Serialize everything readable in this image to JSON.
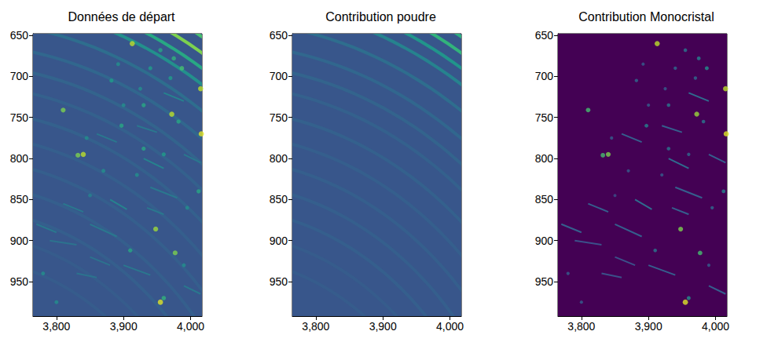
{
  "chart_data": [
    {
      "type": "image",
      "title": "Données de départ",
      "color": "viridis",
      "value_range": [
        0,
        1
      ],
      "xlim": [
        3765,
        4017
      ],
      "xticks": [
        3800,
        3900,
        4000
      ],
      "ylim": [
        648,
        992
      ],
      "yticks": [
        650,
        700,
        750,
        800,
        850,
        900,
        950
      ],
      "background": 0.27,
      "rings": {
        "center": [
          3650,
          1300
        ],
        "radii": [
          745,
          728,
          712,
          695,
          668,
          640,
          615,
          590,
          560,
          530,
          500,
          470,
          440,
          410,
          380
        ],
        "values": [
          0.7,
          0.8,
          0.6,
          0.5,
          0.36,
          0.33,
          0.32,
          0.31,
          0.31,
          0.3,
          0.3,
          0.3,
          0.3,
          0.29,
          0.29
        ]
      },
      "spots": {
        "x": [
          3913,
          3955,
          3975,
          3987,
          3970,
          3940,
          4015,
          3925,
          3882,
          3892,
          3930,
          3810,
          3897,
          3972,
          3982,
          3900,
          3840,
          3832,
          3845,
          3930,
          4016,
          3960,
          3920,
          3870,
          4012,
          3948,
          3910,
          3977,
          3955,
          3960,
          3995,
          3850,
          3780,
          3800,
          3990
        ],
        "y": [
          660,
          668,
          678,
          690,
          702,
          690,
          715,
          715,
          705,
          685,
          735,
          741,
          760,
          746,
          755,
          735,
          795,
          796,
          775,
          788,
          770,
          795,
          820,
          815,
          840,
          886,
          912,
          915,
          975,
          970,
          860,
          845,
          940,
          975,
          930
        ],
        "values": [
          0.9,
          0.6,
          0.65,
          0.7,
          0.55,
          0.55,
          0.9,
          0.5,
          0.55,
          0.5,
          0.6,
          0.8,
          0.6,
          0.9,
          0.6,
          0.5,
          0.9,
          0.8,
          0.5,
          0.6,
          0.95,
          0.55,
          0.5,
          0.5,
          0.6,
          0.85,
          0.6,
          0.8,
          0.95,
          0.65,
          0.5,
          0.45,
          0.5,
          0.5,
          0.5
        ]
      },
      "streaks": [
        [
          3880,
          850,
          3905,
          862,
          0.45
        ],
        [
          3935,
          860,
          3960,
          868,
          0.4
        ],
        [
          3770,
          880,
          3800,
          890,
          0.4
        ],
        [
          3790,
          900,
          3830,
          905,
          0.38
        ],
        [
          3850,
          880,
          3890,
          895,
          0.4
        ],
        [
          3930,
          800,
          3960,
          812,
          0.45
        ],
        [
          3940,
          835,
          3980,
          848,
          0.4
        ],
        [
          3860,
          770,
          3890,
          780,
          0.4
        ],
        [
          3990,
          795,
          4015,
          805,
          0.4
        ],
        [
          3830,
          940,
          3860,
          945,
          0.38
        ],
        [
          3900,
          930,
          3940,
          942,
          0.4
        ],
        [
          3960,
          720,
          3990,
          730,
          0.45
        ],
        [
          3920,
          760,
          3950,
          768,
          0.4
        ],
        [
          3810,
          855,
          3840,
          865,
          0.4
        ],
        [
          3990,
          955,
          4015,
          965,
          0.4
        ],
        [
          3850,
          920,
          3880,
          930,
          0.38
        ]
      ]
    },
    {
      "type": "image",
      "title": "Contribution poudre",
      "color": "viridis",
      "value_range": [
        0,
        1
      ],
      "xlim": [
        3765,
        4017
      ],
      "xticks": [
        3800,
        3900,
        4000
      ],
      "ylim": [
        648,
        992
      ],
      "yticks": [
        650,
        700,
        750,
        800,
        850,
        900,
        950
      ],
      "background": 0.27,
      "rings": {
        "center": [
          3650,
          1300
        ],
        "radii": [
          745,
          728,
          712,
          695,
          668,
          640,
          615,
          590,
          560,
          530,
          500,
          470,
          440,
          410,
          380
        ],
        "values": [
          0.62,
          0.65,
          0.52,
          0.45,
          0.36,
          0.33,
          0.32,
          0.31,
          0.31,
          0.3,
          0.3,
          0.3,
          0.3,
          0.29,
          0.29
        ]
      }
    },
    {
      "type": "image",
      "title": "Contribution Monocristal",
      "color": "viridis",
      "value_range": [
        0,
        1
      ],
      "xlim": [
        3765,
        4017
      ],
      "xticks": [
        3800,
        3900,
        4000
      ],
      "ylim": [
        648,
        992
      ],
      "yticks": [
        650,
        700,
        750,
        800,
        850,
        900,
        950
      ],
      "background": 0,
      "spots": {
        "x": [
          3913,
          3955,
          3975,
          3987,
          3970,
          3940,
          4015,
          3925,
          3882,
          3892,
          3930,
          3810,
          3897,
          3972,
          3982,
          3900,
          3840,
          3832,
          3845,
          3930,
          4016,
          3960,
          3920,
          3870,
          4012,
          3948,
          3910,
          3977,
          3955,
          3960,
          3995,
          3850,
          3780,
          3800,
          3990
        ],
        "y": [
          660,
          668,
          678,
          690,
          702,
          690,
          715,
          715,
          705,
          685,
          735,
          741,
          760,
          746,
          755,
          735,
          795,
          796,
          775,
          788,
          770,
          795,
          820,
          815,
          840,
          886,
          912,
          915,
          975,
          970,
          860,
          845,
          940,
          975,
          930
        ],
        "values": [
          0.9,
          0.4,
          0.45,
          0.5,
          0.35,
          0.35,
          0.9,
          0.3,
          0.35,
          0.3,
          0.4,
          0.7,
          0.45,
          0.85,
          0.4,
          0.3,
          0.8,
          0.7,
          0.3,
          0.4,
          0.95,
          0.35,
          0.3,
          0.3,
          0.45,
          0.8,
          0.4,
          0.7,
          0.95,
          0.5,
          0.35,
          0.25,
          0.3,
          0.3,
          0.3
        ]
      },
      "streaks": [
        [
          3880,
          850,
          3905,
          862,
          0.35
        ],
        [
          3935,
          860,
          3960,
          868,
          0.3
        ],
        [
          3770,
          880,
          3800,
          890,
          0.3
        ],
        [
          3790,
          900,
          3830,
          905,
          0.25
        ],
        [
          3850,
          880,
          3890,
          895,
          0.3
        ],
        [
          3930,
          800,
          3960,
          812,
          0.35
        ],
        [
          3940,
          835,
          3980,
          848,
          0.3
        ],
        [
          3860,
          770,
          3890,
          780,
          0.3
        ],
        [
          3990,
          795,
          4015,
          805,
          0.3
        ],
        [
          3830,
          940,
          3860,
          945,
          0.25
        ],
        [
          3900,
          930,
          3940,
          942,
          0.3
        ],
        [
          3960,
          720,
          3990,
          730,
          0.35
        ],
        [
          3920,
          760,
          3950,
          768,
          0.3
        ],
        [
          3810,
          855,
          3840,
          865,
          0.3
        ],
        [
          3990,
          955,
          4015,
          965,
          0.3
        ],
        [
          3850,
          920,
          3880,
          930,
          0.25
        ]
      ]
    }
  ]
}
